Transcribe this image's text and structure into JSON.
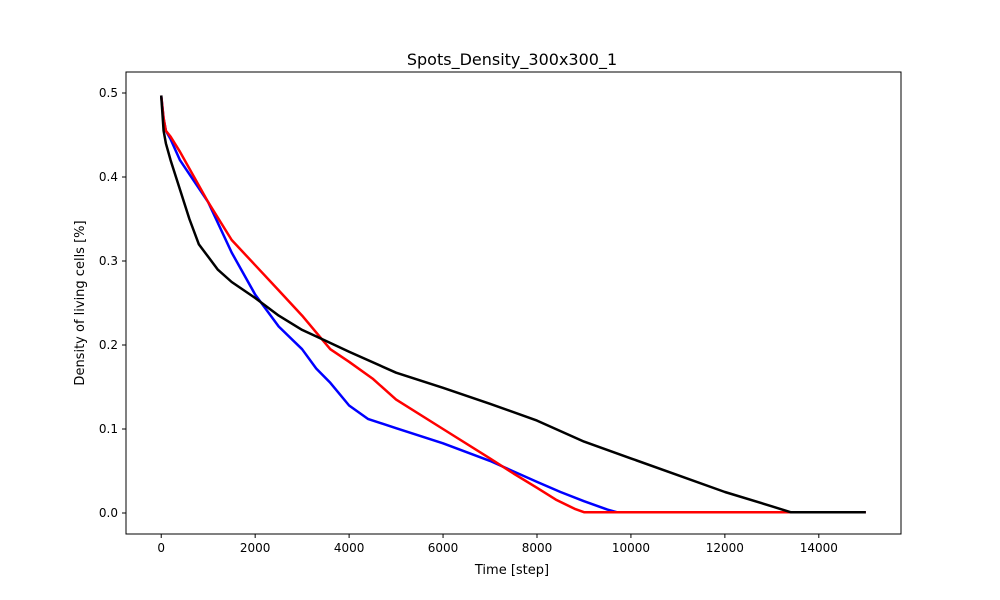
{
  "chart_data": {
    "type": "line",
    "title": "Spots_Density_300x300_1",
    "xlabel": "Time [step]",
    "ylabel": "Density of living cells [%]",
    "xlim": [
      -750,
      15750
    ],
    "ylim": [
      -0.025,
      0.525
    ],
    "xticks": [
      0,
      2000,
      4000,
      6000,
      8000,
      10000,
      12000,
      14000
    ],
    "yticks": [
      0.0,
      0.1,
      0.2,
      0.3,
      0.4,
      0.5
    ],
    "xtick_labels": [
      "0",
      "2000",
      "4000",
      "6000",
      "8000",
      "10000",
      "12000",
      "14000"
    ],
    "ytick_labels": [
      "0.0",
      "0.1",
      "0.2",
      "0.3",
      "0.4",
      "0.5"
    ],
    "grid": false,
    "legend": "none",
    "series": [
      {
        "color": "#0000ff",
        "x": [
          0,
          50,
          100,
          200,
          400,
          700,
          1000,
          1500,
          2000,
          2500,
          3000,
          3300,
          3600,
          4000,
          4400,
          5000,
          6000,
          7000,
          8000,
          8500,
          9000,
          9500,
          9700,
          10000,
          12000,
          15000
        ],
        "y": [
          0.497,
          0.47,
          0.455,
          0.445,
          0.42,
          0.395,
          0.37,
          0.31,
          0.26,
          0.222,
          0.195,
          0.172,
          0.155,
          0.128,
          0.112,
          0.101,
          0.083,
          0.062,
          0.037,
          0.025,
          0.014,
          0.004,
          0.001,
          0.001,
          0.001,
          0.001
        ]
      },
      {
        "color": "#ff0000",
        "x": [
          0,
          50,
          100,
          200,
          400,
          700,
          1000,
          1500,
          2000,
          2500,
          3000,
          3300,
          3600,
          4000,
          4500,
          5000,
          6000,
          7000,
          7500,
          8000,
          8400,
          8800,
          9000,
          10000,
          12000,
          15000
        ],
        "y": [
          0.497,
          0.47,
          0.455,
          0.448,
          0.43,
          0.4,
          0.37,
          0.325,
          0.295,
          0.265,
          0.235,
          0.215,
          0.195,
          0.18,
          0.16,
          0.135,
          0.1,
          0.065,
          0.047,
          0.03,
          0.016,
          0.005,
          0.001,
          0.001,
          0.001,
          0.001
        ]
      },
      {
        "color": "#000000",
        "x": [
          0,
          50,
          100,
          200,
          400,
          600,
          800,
          1000,
          1200,
          1500,
          2000,
          2500,
          3000,
          3500,
          4000,
          5000,
          6000,
          7000,
          8000,
          9000,
          10000,
          11000,
          12000,
          13000,
          13400,
          14000,
          15000
        ],
        "y": [
          0.497,
          0.455,
          0.44,
          0.42,
          0.385,
          0.35,
          0.32,
          0.305,
          0.29,
          0.275,
          0.256,
          0.235,
          0.218,
          0.205,
          0.192,
          0.167,
          0.149,
          0.13,
          0.11,
          0.085,
          0.065,
          0.045,
          0.025,
          0.008,
          0.001,
          0.001,
          0.001
        ]
      }
    ]
  }
}
